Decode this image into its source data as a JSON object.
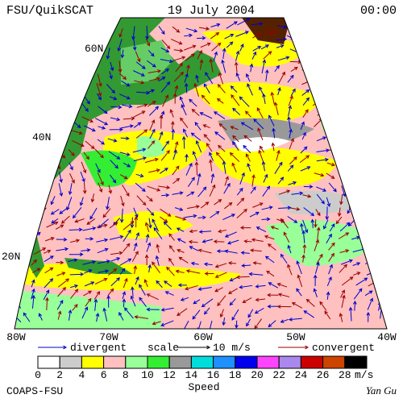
{
  "header": {
    "left": "FSU/QuikSCAT",
    "center": "19 July 2004",
    "right": "00:00"
  },
  "lat_labels": [
    "60N",
    "40N",
    "20N"
  ],
  "lon_labels": [
    "80W",
    "70W",
    "60W",
    "50W",
    "40W"
  ],
  "legend": {
    "divergent": "divergent",
    "scale": "scale",
    "scale_value": "10 m/s",
    "convergent": "convergent",
    "divergent_color": "#0000cc",
    "convergent_color": "#990000"
  },
  "colorbar": {
    "title": "Speed",
    "unit": "m/s",
    "labels": [
      0,
      2,
      4,
      6,
      8,
      10,
      12,
      14,
      16,
      18,
      20,
      22,
      24,
      26,
      28
    ],
    "colors": [
      "#ffffff",
      "#cccccc",
      "#ffff00",
      "#ffc0c0",
      "#99ff99",
      "#33ee33",
      "#999999",
      "#00dddd",
      "#1e90ff",
      "#0000ee",
      "#ff44ff",
      "#aa88ee",
      "#cc0000",
      "#cc4400",
      "#000000"
    ]
  },
  "footer": {
    "left": "COAPS-FSU",
    "right": "Yan Gu"
  }
}
